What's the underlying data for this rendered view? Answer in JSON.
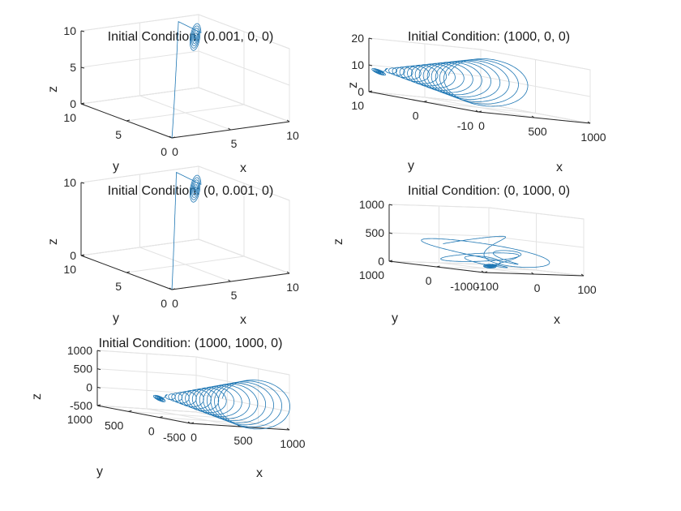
{
  "chart_data": [
    {
      "type": "line3d",
      "title": "Initial Condition: (0.001, 0, 0)",
      "xlabel": "x",
      "ylabel": "y",
      "zlabel": "z",
      "xlim": [
        0,
        10
      ],
      "ylim": [
        0,
        10
      ],
      "zlim": [
        0,
        10
      ],
      "xticks": [
        "0",
        "5",
        "10"
      ],
      "yticks": [
        "0",
        "5",
        "10"
      ],
      "zticks": [
        "0",
        "5",
        "10"
      ],
      "grid": true,
      "trajectory": {
        "shape": "spiral",
        "start": [
          0.001,
          0,
          0
        ],
        "loops": 6,
        "x": [
          0.001,
          0.4,
          1.8,
          4.5,
          6.9,
          8.9,
          9.2,
          8.6,
          8.3,
          8.4
        ],
        "y": [
          0,
          0.3,
          1.9,
          5.1,
          8.2,
          9.6,
          9.2,
          8.4,
          8.2,
          8.3
        ],
        "z": [
          0,
          0.1,
          0.5,
          3.8,
          7.5,
          10.8,
          9.4,
          8.2,
          7.9,
          8.0
        ]
      }
    },
    {
      "type": "line3d",
      "title": "Initial Condition: (1000, 0, 0)",
      "xlabel": "x",
      "ylabel": "y",
      "zlabel": "z",
      "xlim": [
        0,
        1000
      ],
      "ylim": [
        -10,
        10
      ],
      "zlim": [
        0,
        20
      ],
      "xticks": [
        "0",
        "500",
        "1000"
      ],
      "yticks": [
        "-10",
        "0",
        "10"
      ],
      "zticks": [
        "0",
        "10",
        "20"
      ],
      "grid": true,
      "trajectory": {
        "shape": "decaying-loops",
        "start": [
          1000,
          0,
          0
        ],
        "loops": 18,
        "x": [
          1000,
          900,
          700,
          500,
          300,
          150,
          50,
          10,
          8,
          8.4
        ],
        "y": [
          0,
          4,
          -5,
          6,
          -6,
          5,
          -3,
          3,
          8.2,
          8.3
        ],
        "z": [
          0,
          19,
          1,
          18,
          2,
          15,
          3,
          10,
          7.9,
          8.0
        ]
      }
    },
    {
      "type": "line3d",
      "title": "Initial Condition: (0, 0.001, 0)",
      "xlabel": "x",
      "ylabel": "y",
      "zlabel": "z",
      "xlim": [
        0,
        10
      ],
      "ylim": [
        0,
        10
      ],
      "zlim": [
        0,
        10
      ],
      "xticks": [
        "0",
        "5",
        "10"
      ],
      "yticks": [
        "0",
        "5",
        "10"
      ],
      "zticks": [
        "0",
        "10"
      ],
      "grid": true,
      "trajectory": {
        "shape": "spiral",
        "start": [
          0,
          0.001,
          0
        ],
        "loops": 6,
        "x": [
          0,
          0.3,
          1.6,
          4.3,
          6.8,
          8.8,
          9.2,
          8.6,
          8.3,
          8.4
        ],
        "y": [
          0.001,
          0.4,
          2.0,
          5.2,
          8.3,
          9.7,
          9.2,
          8.4,
          8.2,
          8.3
        ],
        "z": [
          0,
          0.1,
          0.6,
          3.9,
          7.6,
          10.9,
          9.4,
          8.2,
          7.9,
          8.0
        ]
      }
    },
    {
      "type": "line3d",
      "title": "Initial Condition: (0, 1000, 0)",
      "xlabel": "x",
      "ylabel": "y",
      "zlabel": "z",
      "xlim": [
        -100,
        100
      ],
      "ylim": [
        -1000,
        1000
      ],
      "zlim": [
        0,
        1000
      ],
      "xticks": [
        "-100",
        "0",
        "100"
      ],
      "yticks": [
        "-1000",
        "0",
        "1000"
      ],
      "zticks": [
        "0",
        "500",
        "1000"
      ],
      "grid": true,
      "trajectory": {
        "shape": "tangled-loops",
        "start": [
          0,
          1000,
          0
        ],
        "loops": 6,
        "x": [
          0,
          60,
          90,
          30,
          -80,
          -40,
          20,
          10,
          5,
          8
        ],
        "y": [
          1000,
          400,
          -300,
          -800,
          200,
          600,
          -200,
          100,
          8,
          8
        ],
        "z": [
          0,
          800,
          600,
          300,
          500,
          400,
          350,
          200,
          60,
          8
        ]
      }
    },
    {
      "type": "line3d",
      "title": "Initial Condition: (1000, 1000, 0)",
      "xlabel": "x",
      "ylabel": "y",
      "zlabel": "z",
      "xlim": [
        0,
        1000
      ],
      "ylim": [
        -500,
        1000
      ],
      "zlim": [
        -500,
        1000
      ],
      "xticks": [
        "0",
        "500",
        "1000"
      ],
      "yticks": [
        "-500",
        "0",
        "500",
        "1000"
      ],
      "zticks": [
        "-500",
        "0",
        "500",
        "1000"
      ],
      "grid": true,
      "trajectory": {
        "shape": "decaying-loops",
        "start": [
          1000,
          1000,
          0
        ],
        "loops": 18,
        "x": [
          1000,
          900,
          700,
          500,
          300,
          150,
          50,
          10,
          8,
          8.4
        ],
        "y": [
          1000,
          400,
          -300,
          350,
          -250,
          200,
          -120,
          60,
          8.2,
          8.3
        ],
        "z": [
          0,
          950,
          -450,
          800,
          -350,
          600,
          -200,
          250,
          7.9,
          8.0
        ]
      }
    }
  ]
}
